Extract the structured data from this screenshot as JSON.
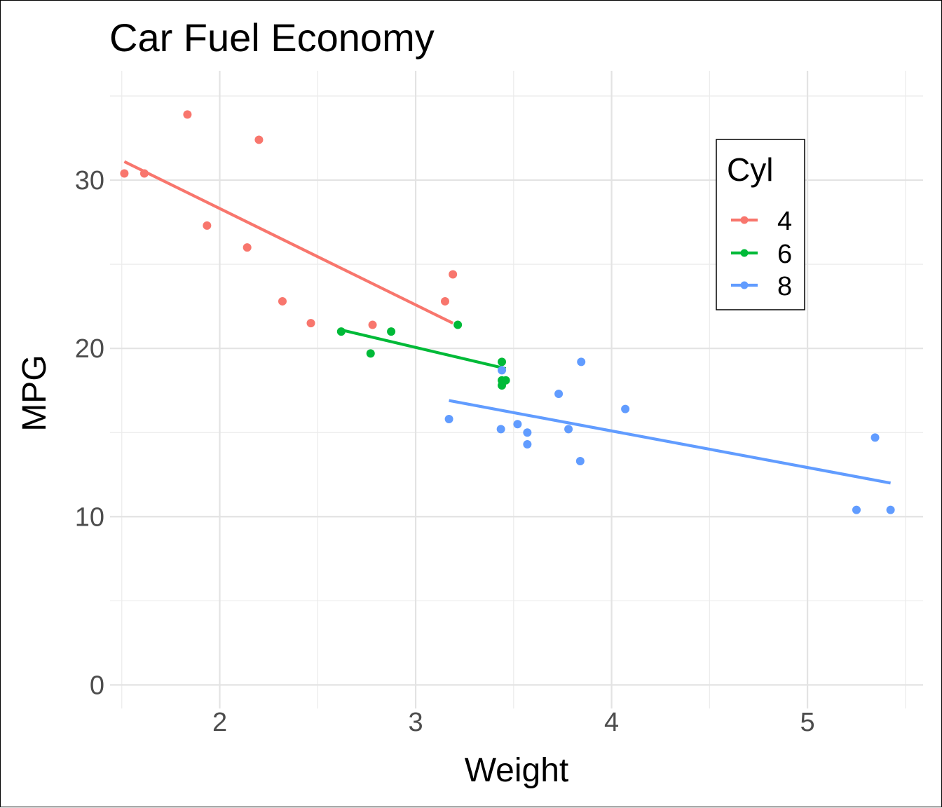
{
  "chart_data": {
    "type": "scatter",
    "title": "Car Fuel Economy",
    "xlabel": "Weight",
    "ylabel": "MPG",
    "xlim": [
      1.44,
      5.59
    ],
    "ylim": [
      -1.4,
      36.5
    ],
    "x_ticks": [
      2,
      3,
      4,
      5
    ],
    "y_ticks": [
      0,
      10,
      20,
      30
    ],
    "x_tick_labels": [
      "2",
      "3",
      "4",
      "5"
    ],
    "y_tick_labels": [
      "0",
      "10",
      "20",
      "30"
    ],
    "grid": true,
    "legend": {
      "title": "Cyl",
      "position": "top-right",
      "entries": [
        "4",
        "6",
        "8"
      ]
    },
    "series": [
      {
        "name": "4",
        "color": "#F8766D",
        "points": [
          {
            "x": 2.32,
            "y": 22.8
          },
          {
            "x": 3.19,
            "y": 24.4
          },
          {
            "x": 3.15,
            "y": 22.8
          },
          {
            "x": 2.2,
            "y": 32.4
          },
          {
            "x": 1.615,
            "y": 30.4
          },
          {
            "x": 1.835,
            "y": 33.9
          },
          {
            "x": 2.465,
            "y": 21.5
          },
          {
            "x": 1.935,
            "y": 27.3
          },
          {
            "x": 2.14,
            "y": 26.0
          },
          {
            "x": 1.513,
            "y": 30.4
          },
          {
            "x": 2.78,
            "y": 21.4
          }
        ],
        "fit": {
          "x": [
            1.513,
            3.19
          ],
          "y": [
            31.1,
            21.5
          ]
        }
      },
      {
        "name": "6",
        "color": "#00BA38",
        "points": [
          {
            "x": 2.62,
            "y": 21.0
          },
          {
            "x": 2.875,
            "y": 21.0
          },
          {
            "x": 3.215,
            "y": 21.4
          },
          {
            "x": 3.44,
            "y": 18.1
          },
          {
            "x": 3.46,
            "y": 18.1
          },
          {
            "x": 3.44,
            "y": 19.2
          },
          {
            "x": 3.44,
            "y": 17.8
          },
          {
            "x": 2.77,
            "y": 19.7
          }
        ],
        "fit": {
          "x": [
            2.62,
            3.46
          ],
          "y": [
            21.1,
            18.8
          ]
        }
      },
      {
        "name": "8",
        "color": "#619CFF",
        "points": [
          {
            "x": 3.44,
            "y": 18.7
          },
          {
            "x": 3.57,
            "y": 14.3
          },
          {
            "x": 4.07,
            "y": 16.4
          },
          {
            "x": 3.73,
            "y": 17.3
          },
          {
            "x": 3.78,
            "y": 15.2
          },
          {
            "x": 5.25,
            "y": 10.4
          },
          {
            "x": 5.424,
            "y": 10.4
          },
          {
            "x": 5.345,
            "y": 14.7
          },
          {
            "x": 3.52,
            "y": 15.5
          },
          {
            "x": 3.435,
            "y": 15.2
          },
          {
            "x": 3.84,
            "y": 13.3
          },
          {
            "x": 3.845,
            "y": 19.2
          },
          {
            "x": 3.17,
            "y": 15.8
          },
          {
            "x": 3.57,
            "y": 15.0
          }
        ],
        "fit": {
          "x": [
            3.17,
            5.424
          ],
          "y": [
            16.9,
            12.0
          ]
        }
      }
    ]
  }
}
